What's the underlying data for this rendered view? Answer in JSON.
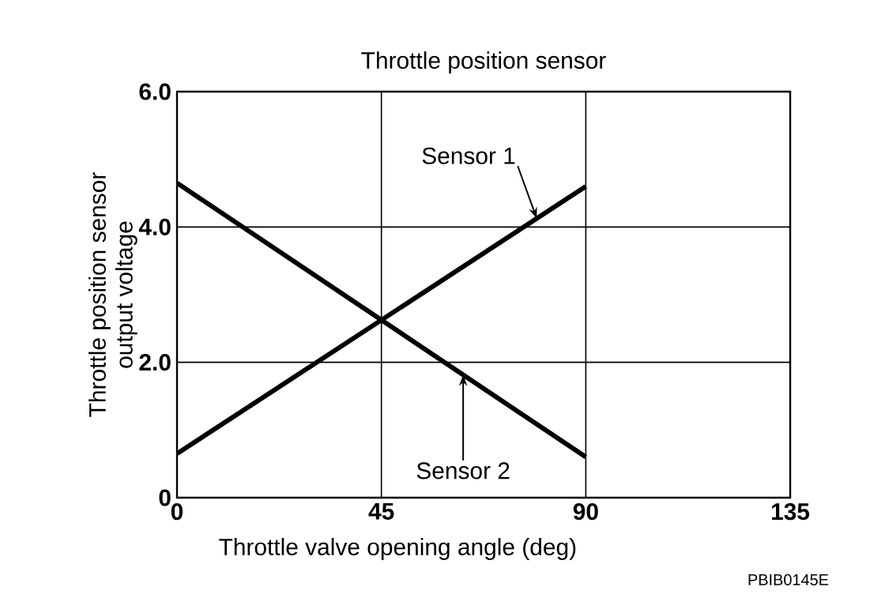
{
  "chart_data": {
    "type": "line",
    "title": "Throttle position sensor",
    "xlabel": "Throttle valve opening angle (deg)",
    "ylabel": "Throttle position sensor\noutput voltage",
    "xlim": [
      0,
      135
    ],
    "xticks": [
      0,
      45,
      90,
      135
    ],
    "ylim": [
      0,
      6
    ],
    "yticks": [
      0,
      {
        "value": 2,
        "label": "2.0"
      },
      {
        "value": 4,
        "label": "4.0"
      },
      {
        "value": 6,
        "label": "6.0"
      }
    ],
    "x": [
      0,
      90
    ],
    "grid": true,
    "marker": "none",
    "line_style": "solid",
    "series": [
      {
        "name": "Sensor 1",
        "color": "#000000",
        "values": [
          0.65,
          4.6
        ]
      },
      {
        "name": "Sensor 2",
        "color": "#000000",
        "values": [
          4.65,
          0.6
        ]
      }
    ],
    "annotations": [
      "PBIB0145E"
    ]
  }
}
